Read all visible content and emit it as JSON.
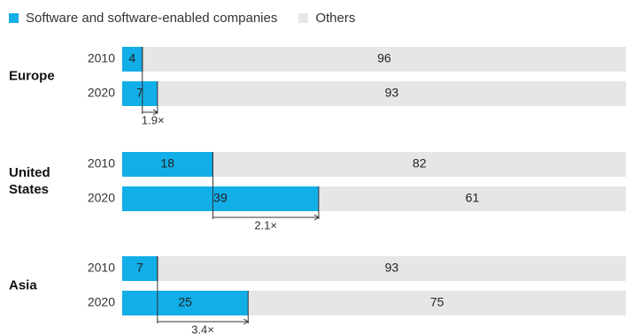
{
  "colors": {
    "software": "#12aee8",
    "others": "#e6e6e6",
    "annotation": "#333333"
  },
  "chart_data": {
    "type": "bar",
    "orientation": "horizontal",
    "stacked": true,
    "legend": {
      "placement": "top-left",
      "entries": [
        {
          "key": "software",
          "label": "Software and software-enabled companies"
        },
        {
          "key": "others",
          "label": "Others"
        }
      ]
    },
    "xlim": [
      0,
      100
    ],
    "groups": [
      {
        "label": "Europe",
        "bars": [
          {
            "year": "2010",
            "software": 4,
            "others": 96
          },
          {
            "year": "2020",
            "software": 7,
            "others": 93
          }
        ],
        "growth": "1.9×"
      },
      {
        "label": "United States",
        "label_lines": [
          "United",
          "States"
        ],
        "bars": [
          {
            "year": "2010",
            "software": 18,
            "others": 82
          },
          {
            "year": "2020",
            "software": 39,
            "others": 61
          }
        ],
        "growth": "2.1×"
      },
      {
        "label": "Asia",
        "bars": [
          {
            "year": "2010",
            "software": 7,
            "others": 93
          },
          {
            "year": "2020",
            "software": 25,
            "others": 75
          }
        ],
        "growth": "3.4×"
      }
    ]
  }
}
